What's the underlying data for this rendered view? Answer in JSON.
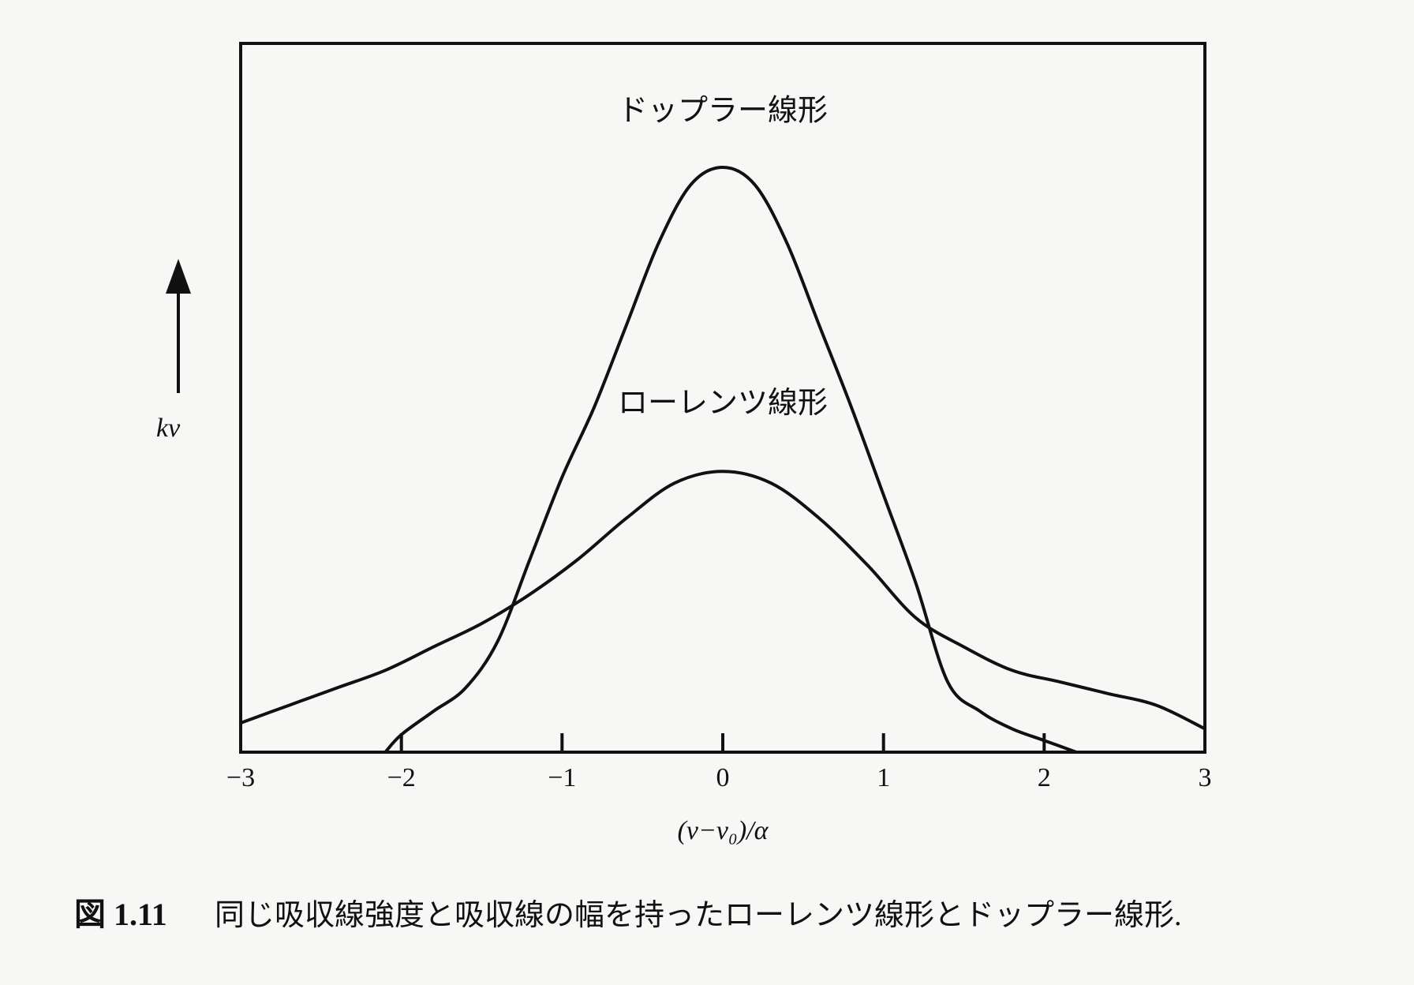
{
  "chart_data": {
    "type": "line",
    "xlabel": "(ν−ν₀)/α",
    "ylabel": "kν",
    "xlim": [
      -3,
      3
    ],
    "ylim": [
      0,
      1
    ],
    "xticks": [
      "−3",
      "−2",
      "−1",
      "0",
      "1",
      "2",
      "3"
    ],
    "grid": false,
    "legend": "none",
    "annotations": [
      {
        "text": "ドップラー線形",
        "series": "ドップラー線形",
        "x": 0,
        "y": 1.08
      },
      {
        "text": "ローレンツ線形",
        "series": "ローレンツ線形",
        "x": 0,
        "y": 0.58
      }
    ],
    "series": [
      {
        "name": "ドップラー線形",
        "x": [
          -2.1,
          -2.0,
          -1.8,
          -1.6,
          -1.4,
          -1.2,
          -1.0,
          -0.8,
          -0.6,
          -0.4,
          -0.2,
          0.0,
          0.2,
          0.4,
          0.6,
          0.8,
          1.0,
          1.2,
          1.4,
          1.6,
          1.8,
          2.0,
          2.2
        ],
        "y": [
          0.0,
          0.03,
          0.07,
          0.11,
          0.19,
          0.33,
          0.47,
          0.59,
          0.73,
          0.87,
          0.97,
          1.0,
          0.97,
          0.87,
          0.73,
          0.59,
          0.44,
          0.29,
          0.12,
          0.07,
          0.04,
          0.02,
          0.0
        ]
      },
      {
        "name": "ローレンツ線形",
        "x": [
          -3.0,
          -2.7,
          -2.4,
          -2.1,
          -1.8,
          -1.5,
          -1.2,
          -0.9,
          -0.6,
          -0.3,
          0.0,
          0.3,
          0.6,
          0.9,
          1.2,
          1.5,
          1.8,
          2.1,
          2.4,
          2.7,
          3.0
        ],
        "y": [
          0.05,
          0.08,
          0.11,
          0.14,
          0.18,
          0.22,
          0.27,
          0.33,
          0.4,
          0.46,
          0.48,
          0.46,
          0.4,
          0.32,
          0.23,
          0.18,
          0.14,
          0.12,
          0.1,
          0.08,
          0.04
        ]
      }
    ]
  },
  "caption": {
    "number": "図 1.11",
    "text": "同じ吸収線強度と吸収線の幅を持ったローレンツ線形とドップラー線形."
  }
}
